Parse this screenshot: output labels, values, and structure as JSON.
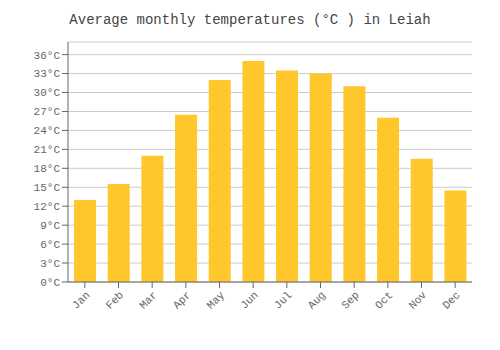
{
  "chart_data": {
    "type": "bar",
    "title": "Average monthly temperatures (°C ) in Leiah",
    "categories": [
      "Jan",
      "Feb",
      "Mar",
      "Apr",
      "May",
      "Jun",
      "Jul",
      "Aug",
      "Sep",
      "Oct",
      "Nov",
      "Dec"
    ],
    "values": [
      13,
      15.5,
      20,
      26.5,
      32,
      35,
      33.5,
      33,
      31,
      26,
      19.5,
      14.5
    ],
    "color": "#FFC72C",
    "ylim": [
      0,
      38
    ],
    "yticks": [
      {
        "value": 0,
        "label": "0°C"
      },
      {
        "value": 3,
        "label": "3°C"
      },
      {
        "value": 6,
        "label": "6°C"
      },
      {
        "value": 9,
        "label": "9°C"
      },
      {
        "value": 12,
        "label": "12°C"
      },
      {
        "value": 15,
        "label": "15°C"
      },
      {
        "value": 18,
        "label": "18°C"
      },
      {
        "value": 21,
        "label": "21°C"
      },
      {
        "value": 24,
        "label": "24°C"
      },
      {
        "value": 27,
        "label": "27°C"
      },
      {
        "value": 30,
        "label": "30°C"
      },
      {
        "value": 33,
        "label": "33°C"
      },
      {
        "value": 36,
        "label": "36°C"
      }
    ],
    "grid": true
  }
}
